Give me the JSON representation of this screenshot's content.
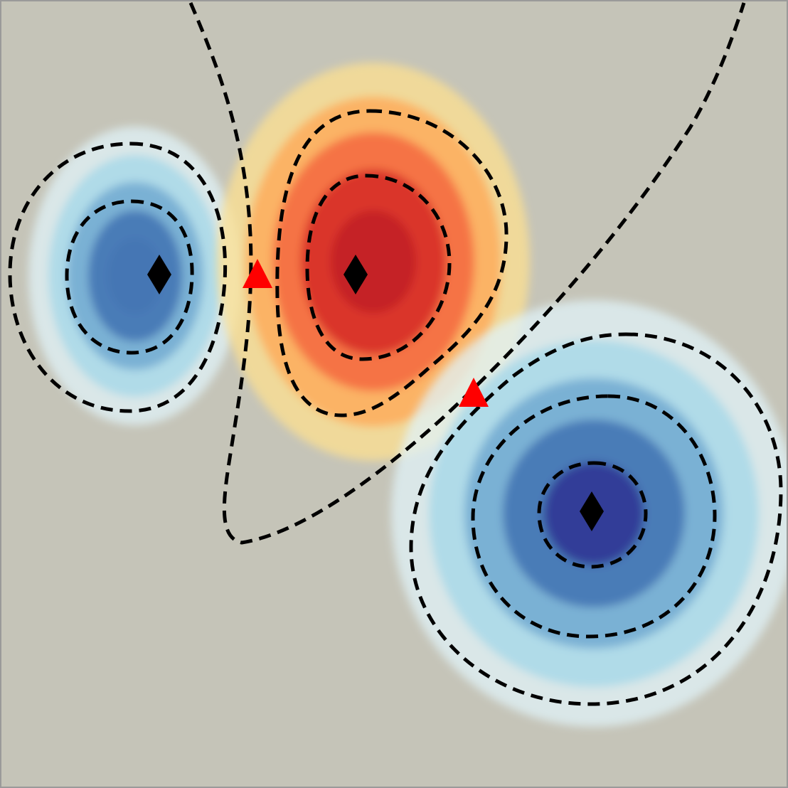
{
  "chart_data": {
    "type": "heatmap",
    "title": "",
    "xlabel": "",
    "ylabel": "",
    "grid": false,
    "colormap": {
      "name": "RdYlBu_r",
      "neutral": "#c5c4b8",
      "stops": [
        "#313695",
        "#4575b4",
        "#74add1",
        "#abd9e9",
        "#e0f3f8",
        "#c5c4b8",
        "#fee090",
        "#fdae61",
        "#f46d43",
        "#d73027",
        "#c21f25"
      ]
    },
    "extrema": [
      {
        "kind": "minimum",
        "label": "blue-left",
        "marker": "diamond",
        "color": "#000000"
      },
      {
        "kind": "maximum",
        "label": "red-center",
        "marker": "diamond",
        "color": "#000000"
      },
      {
        "kind": "minimum",
        "label": "blue-lower-right",
        "marker": "diamond",
        "color": "#000000"
      }
    ],
    "saddle_points": [
      {
        "label": "saddle-upper",
        "marker": "triangle",
        "color": "#ff0000"
      },
      {
        "label": "saddle-lower",
        "marker": "triangle",
        "color": "#ff0000"
      }
    ],
    "contours": {
      "style": "dashed",
      "color": "#000000",
      "lines": [
        "zero-line",
        "left-outer",
        "left-inner",
        "center-outer",
        "center-inner",
        "right-outer",
        "right-middle",
        "right-inner"
      ]
    }
  }
}
